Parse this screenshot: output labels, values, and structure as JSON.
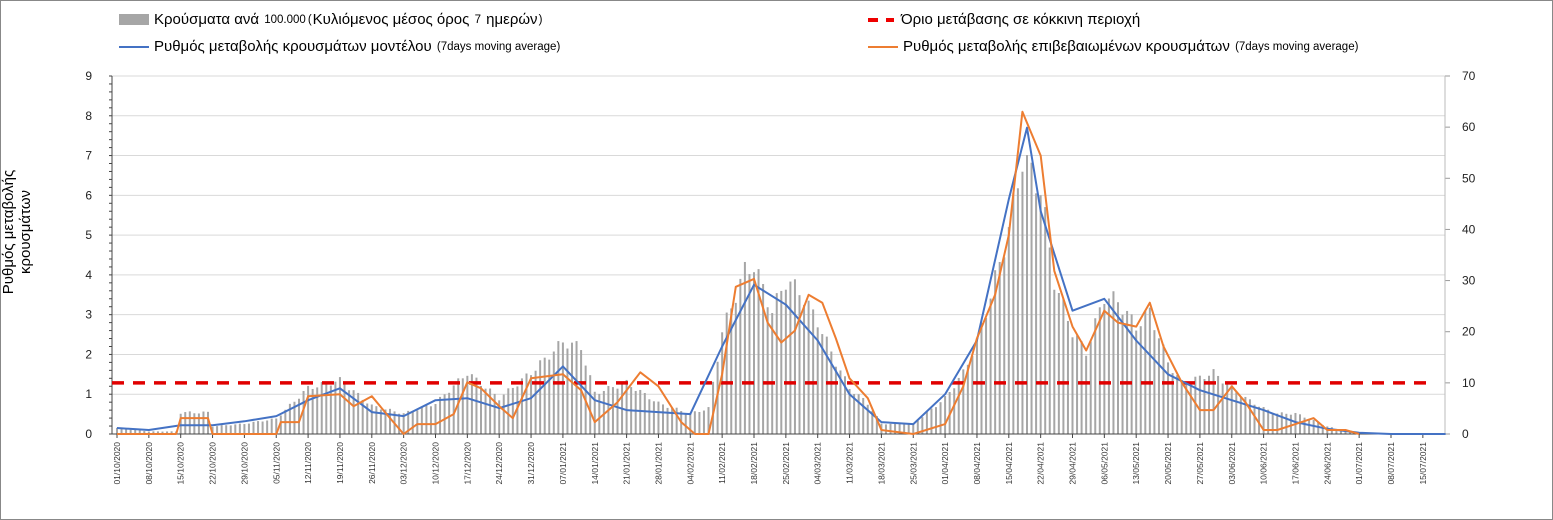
{
  "legend": {
    "bars": {
      "bold1": "Κρούσματα ανά",
      "small1": "100.000",
      "paren_open": "(",
      "bold2": "Κυλιόμενος μέσος όρος",
      "small2": "7",
      "bold3": "ημερών",
      "paren_close": ")"
    },
    "threshold": {
      "label": "Όριο μετάβασης σε κόκκινη περιοχή"
    },
    "model": {
      "label": "Ρυθμός μεταβολής κρουσμάτων μοντέλου",
      "note": "(7days moving average)"
    },
    "confirmed": {
      "label": "Ρυθμός μεταβολής επιβεβαιωμένων κρουσμάτων",
      "note": "(7days moving average)"
    }
  },
  "colors": {
    "bars": "#a6a6a6",
    "model": "#4472c4",
    "confirmed": "#ed7d31",
    "threshold": "#e00000",
    "grid": "#d9d9d9"
  },
  "chart_data": {
    "type": "bar+line",
    "ylabel": "Ρυθμός μεταβολής κρουσμάτων",
    "ylim_left": [
      0,
      9
    ],
    "yticks_left": [
      "0",
      "1",
      "2",
      "3",
      "4",
      "5",
      "6",
      "7",
      "8",
      "9"
    ],
    "ylim_right": [
      0,
      70
    ],
    "yticks_right": [
      "0",
      "10",
      "20",
      "30",
      "40",
      "50",
      "60",
      "70"
    ],
    "x_start": "01/10/2020",
    "x_days_span": 292,
    "xticks": [
      "01/10/2020",
      "08/10/2020",
      "15/10/2020",
      "22/10/2020",
      "29/10/2020",
      "05/11/2020",
      "12/11/2020",
      "19/11/2020",
      "26/11/2020",
      "03/12/2020",
      "10/12/2020",
      "17/12/2020",
      "24/12/2020",
      "31/12/2020",
      "07/01/2021",
      "14/01/2021",
      "21/01/2021",
      "28/01/2021",
      "04/02/2021",
      "11/02/2021",
      "18/02/2021",
      "25/02/2021",
      "04/03/2021",
      "11/03/2021",
      "18/03/2021",
      "25/03/2021",
      "01/04/2021",
      "08/04/2021",
      "15/04/2021",
      "22/04/2021",
      "29/04/2021",
      "06/05/2021",
      "13/05/2021",
      "20/05/2021",
      "27/05/2021",
      "03/06/2021",
      "10/06/2021",
      "17/06/2021",
      "24/06/2021",
      "01/07/2021",
      "08/07/2021",
      "15/07/2021"
    ],
    "threshold_right": 10,
    "bars_right_axis": {
      "day": [
        0,
        7,
        13,
        14,
        20,
        21,
        28,
        35,
        42,
        49,
        56,
        63,
        70,
        77,
        84,
        91,
        98,
        102,
        105,
        112,
        119,
        126,
        130,
        133,
        138,
        140,
        144,
        147,
        150,
        154,
        158,
        161,
        165,
        168,
        175,
        182,
        186,
        189,
        192,
        196,
        199,
        203,
        206,
        210,
        213,
        217,
        220,
        224,
        227,
        231,
        234,
        238,
        241,
        245,
        248,
        252,
        255,
        259,
        262,
        266,
        270,
        275,
        285
      ],
      "value": [
        1.2,
        0.5,
        0.5,
        4.2,
        4.2,
        1.5,
        2,
        3,
        9,
        10.5,
        5.5,
        4,
        6,
        12,
        7,
        12,
        18,
        17,
        8,
        10,
        6,
        4,
        5,
        20,
        32,
        33,
        24,
        30,
        28,
        22,
        14,
        9,
        6,
        2,
        2,
        7,
        12,
        18,
        27,
        40,
        54,
        48,
        30,
        20,
        16,
        27,
        26,
        21,
        24,
        14,
        10,
        11,
        12,
        9,
        7,
        5,
        4,
        4,
        3,
        1.5,
        0.5,
        0,
        0
      ]
    },
    "series": [
      {
        "name": "model",
        "axis": "left",
        "day": [
          0,
          7,
          14,
          21,
          28,
          35,
          42,
          49,
          56,
          63,
          70,
          77,
          84,
          91,
          98,
          105,
          112,
          119,
          126,
          133,
          140,
          147,
          154,
          161,
          168,
          175,
          182,
          189,
          196,
          200,
          203,
          210,
          217,
          224,
          231,
          238,
          245,
          252,
          259,
          266,
          273,
          280,
          292
        ],
        "value": [
          0.15,
          0.1,
          0.22,
          0.22,
          0.32,
          0.45,
          0.85,
          1.15,
          0.55,
          0.45,
          0.85,
          0.9,
          0.65,
          0.9,
          1.7,
          0.85,
          0.6,
          0.55,
          0.5,
          2.2,
          3.75,
          3.25,
          2.35,
          1.0,
          0.3,
          0.25,
          1.0,
          2.35,
          5.9,
          7.7,
          5.6,
          3.1,
          3.4,
          2.35,
          1.5,
          1.1,
          0.85,
          0.6,
          0.3,
          0.13,
          0.03,
          0,
          0
        ]
      },
      {
        "name": "confirmed",
        "axis": "left",
        "day": [
          0,
          13,
          14,
          20,
          21,
          35,
          36,
          40,
          42,
          49,
          52,
          56,
          60,
          63,
          66,
          70,
          74,
          77,
          80,
          84,
          87,
          91,
          98,
          102,
          105,
          110,
          115,
          119,
          124,
          127,
          130,
          133,
          136,
          140,
          143,
          146,
          149,
          152,
          155,
          158,
          161,
          165,
          168,
          175,
          182,
          186,
          189,
          193,
          196,
          199,
          203,
          206,
          210,
          213,
          217,
          220,
          224,
          227,
          230,
          234,
          238,
          241,
          245,
          248,
          252,
          255,
          259,
          263,
          266,
          270,
          273
        ],
        "value": [
          0,
          0,
          0.4,
          0.4,
          0,
          0,
          0.3,
          0.3,
          0.95,
          1.0,
          0.7,
          0.95,
          0.4,
          0,
          0.25,
          0.25,
          0.5,
          1.3,
          1.15,
          0.7,
          0.4,
          1.4,
          1.5,
          1.1,
          0.3,
          0.8,
          1.55,
          1.2,
          0.3,
          0,
          0,
          1.5,
          3.7,
          3.9,
          2.8,
          2.3,
          2.6,
          3.5,
          3.3,
          2.4,
          1.4,
          0.9,
          0.1,
          0,
          0.25,
          1.2,
          2.4,
          3.5,
          5.0,
          8.1,
          7.0,
          4.1,
          2.7,
          2.1,
          3.1,
          2.8,
          2.7,
          3.3,
          2.2,
          1.3,
          0.6,
          0.6,
          1.2,
          0.8,
          0.1,
          0.1,
          0.25,
          0.4,
          0.1,
          0.1,
          0
        ]
      }
    ]
  }
}
